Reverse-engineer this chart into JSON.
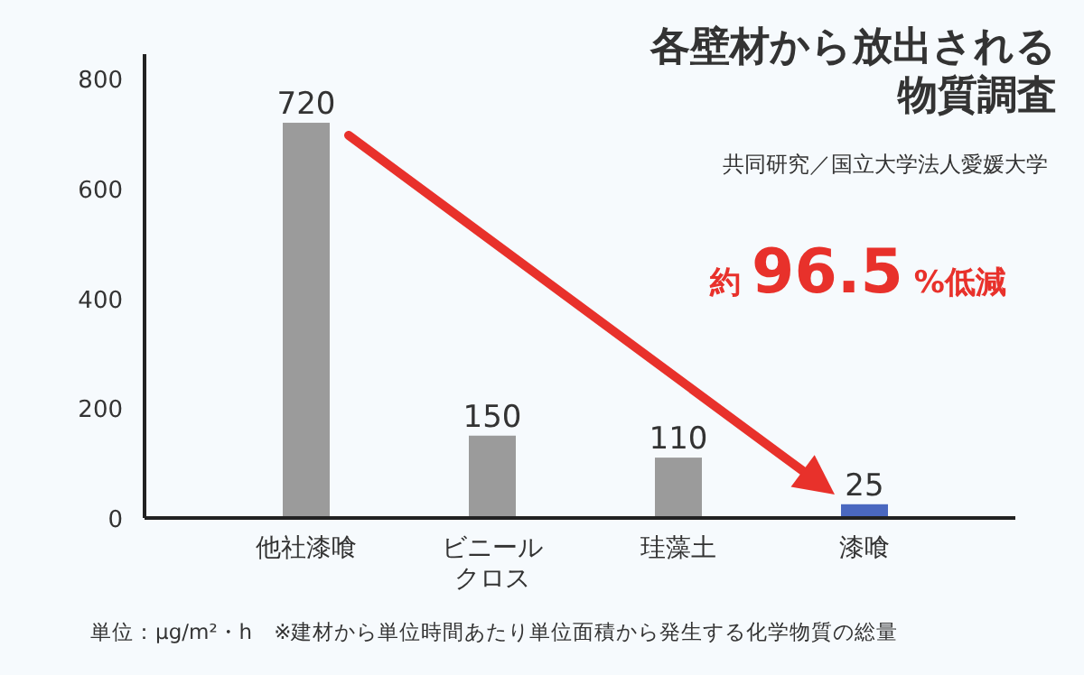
{
  "chart_data": {
    "type": "bar",
    "title": "各壁材から放出される物質調査",
    "subtitle": "共同研究／国立大学法人愛媛大学",
    "categories": [
      "他社漆喰",
      "ビニールクロス",
      "珪藻土",
      "漆喰"
    ],
    "values": [
      720,
      150,
      110,
      25
    ],
    "colors": [
      "#9b9b9b",
      "#9b9b9b",
      "#9b9b9b",
      "#4a68c0"
    ],
    "ylim": [
      0,
      845
    ],
    "yticks": [
      0,
      200,
      400,
      600,
      800
    ],
    "grid": false,
    "data_labels": true,
    "annotations": [
      "約 96.5 %低減",
      "単位：μg/m²・h　※建材から単位時間あたり単位面積から発生する化学物質の総量"
    ]
  }
}
